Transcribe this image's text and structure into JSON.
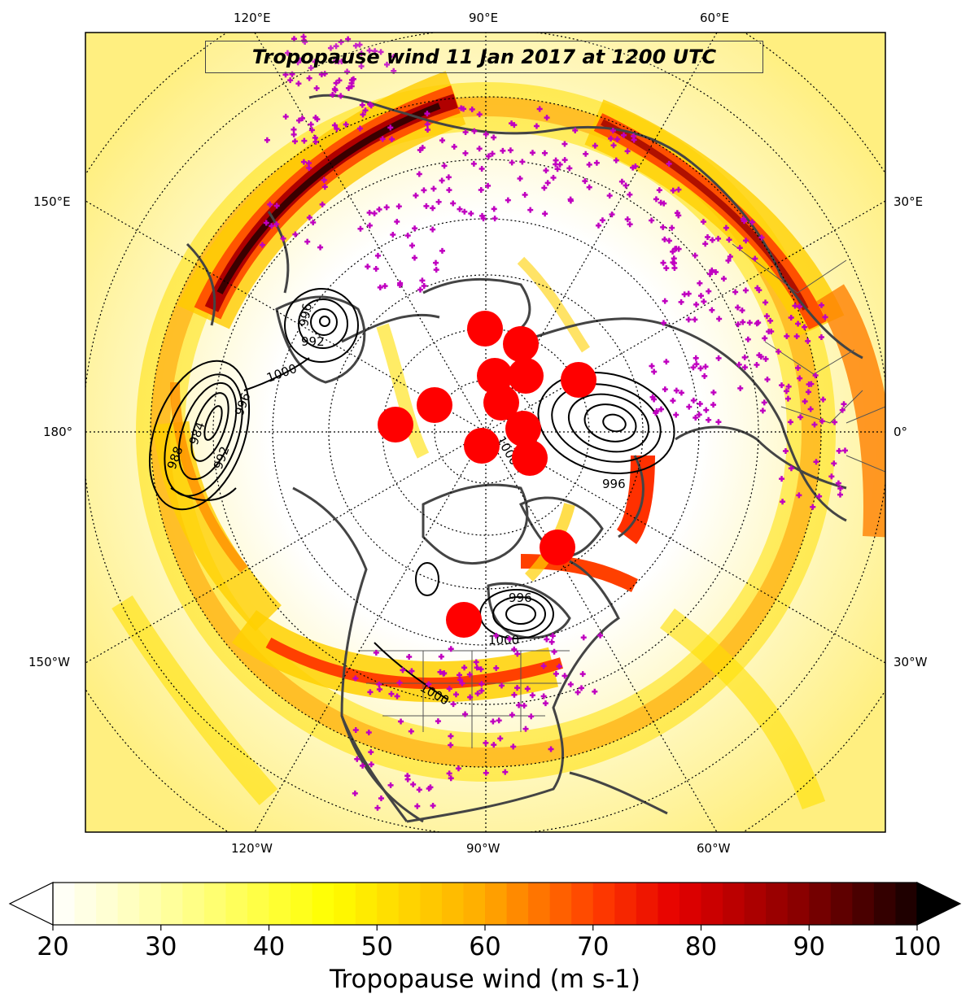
{
  "title": "Tropopause wind 11 Jan 2017 at 1200 UTC",
  "map": {
    "projection": "north-polar-stereographic",
    "central_longitude": -90,
    "top_lon_labels": [
      "120°E",
      "90°E",
      "60°E"
    ],
    "bottom_lon_labels": [
      "120°W",
      "90°W",
      "60°W"
    ],
    "left_lon_labels": [
      "150°E",
      "180°",
      "150°W"
    ],
    "right_lon_labels": [
      "30°E",
      "0°",
      "30°W"
    ],
    "gridlines": "dotted",
    "marker_color": "#c000c0",
    "high_marker_color": "#ff0000",
    "coast_color": "#444444"
  },
  "contour_labels": [
    "988",
    "984",
    "992",
    "996",
    "1000",
    "996",
    "992",
    "1000",
    "996",
    "1000",
    "996",
    "1000"
  ],
  "colorbar": {
    "label": "Tropopause wind (m s-1)",
    "ticks": [
      "20",
      "30",
      "40",
      "50",
      "60",
      "70",
      "80",
      "90",
      "100"
    ],
    "min": 20,
    "max": 100,
    "extend": "both",
    "colormap": "hot_r"
  }
}
